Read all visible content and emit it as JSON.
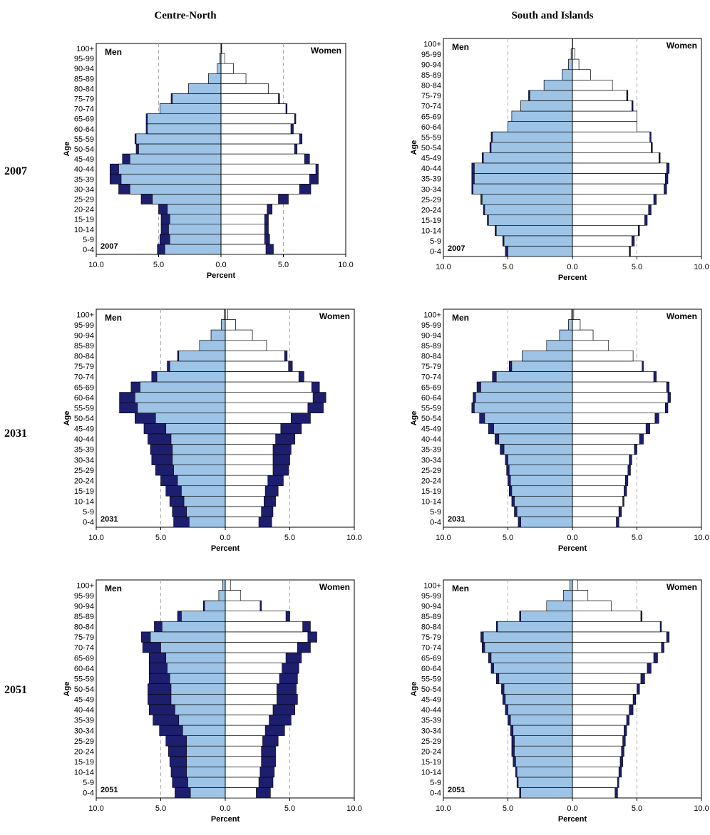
{
  "columns": [
    "Centre-North",
    "South and Islands"
  ],
  "rows": [
    "2007",
    "2031",
    "2051"
  ],
  "colors": {
    "total_fill": "#1e1e6e",
    "italian_fill": "#9dc3e6",
    "women_fill": "#ffffff",
    "gridline": "#aaaaaa"
  },
  "chart_data": [
    {
      "type": "bar",
      "region": "Centre-North",
      "year": "2007",
      "xlabel": "Percent",
      "ylabel": "Age",
      "men_label": "Men",
      "women_label": "Women",
      "xticks": [
        "10.0",
        "5.0",
        "0.0",
        "5.0",
        "10.0"
      ],
      "xlim": [
        -10,
        10
      ],
      "categories": [
        "0-4",
        "5-9",
        "10-14",
        "15-19",
        "20-24",
        "25-29",
        "30-34",
        "35-39",
        "40-44",
        "45-49",
        "50-54",
        "55-59",
        "60-64",
        "65-69",
        "70-74",
        "75-79",
        "80-84",
        "85-89",
        "90-94",
        "95-99",
        "100+"
      ],
      "series": [
        {
          "values": [
            -4.5,
            -4.1,
            -4.2,
            -4.1,
            -4.3,
            -5.5,
            -7.3,
            -8.0,
            -8.2,
            -7.3,
            -6.6,
            -6.8,
            -5.9,
            -5.9,
            -4.9,
            -3.9,
            -2.6,
            -1.0,
            -0.3,
            -0.1,
            0
          ]
        },
        {
          "values": [
            -5.1,
            -4.9,
            -4.8,
            -4.8,
            -5.0,
            -6.4,
            -8.2,
            -8.9,
            -8.9,
            -7.9,
            -6.8,
            -6.9,
            -6.0,
            -6.0,
            -4.9,
            -4.0,
            -2.6,
            -1.0,
            -0.3,
            -0.1,
            0
          ]
        },
        {
          "values": [
            3.6,
            3.5,
            3.5,
            3.5,
            3.7,
            4.6,
            6.3,
            7.1,
            7.6,
            6.7,
            5.9,
            6.3,
            5.6,
            5.9,
            5.2,
            4.6,
            3.8,
            2.0,
            1.0,
            0.3,
            0.05
          ]
        },
        {
          "values": [
            4.2,
            3.9,
            3.8,
            3.8,
            4.1,
            5.4,
            7.2,
            7.8,
            7.8,
            7.1,
            6.1,
            6.5,
            5.8,
            6.0,
            5.3,
            4.7,
            3.8,
            2.0,
            1.0,
            0.3,
            0.05
          ]
        }
      ]
    },
    {
      "type": "bar",
      "region": "South and Islands",
      "year": "2007",
      "xlabel": "Percent",
      "ylabel": "Age",
      "men_label": "Men",
      "women_label": "Women",
      "xticks": [
        "10.0",
        "5.0",
        "0.0",
        "5.0",
        "10.0"
      ],
      "xlim": [
        -10,
        10
      ],
      "categories": [
        "0-4",
        "5-9",
        "10-14",
        "15-19",
        "20-24",
        "25-29",
        "30-34",
        "35-39",
        "40-44",
        "45-49",
        "50-54",
        "55-59",
        "60-64",
        "65-69",
        "70-74",
        "75-79",
        "80-84",
        "85-89",
        "90-94",
        "95-99",
        "100+"
      ],
      "series": [
        {
          "values": [
            -5.0,
            -5.3,
            -5.9,
            -6.5,
            -6.8,
            -7.0,
            -7.7,
            -7.6,
            -7.6,
            -6.9,
            -6.3,
            -6.2,
            -5.0,
            -4.7,
            -4.0,
            -3.3,
            -2.2,
            -0.8,
            -0.3,
            -0.1,
            0
          ]
        },
        {
          "values": [
            -5.2,
            -5.4,
            -6.0,
            -6.6,
            -6.9,
            -7.1,
            -7.8,
            -7.8,
            -7.8,
            -7.0,
            -6.4,
            -6.3,
            -5.0,
            -4.7,
            -4.0,
            -3.4,
            -2.2,
            -0.8,
            -0.3,
            -0.1,
            0
          ]
        },
        {
          "values": [
            4.4,
            4.6,
            5.1,
            5.6,
            5.9,
            6.3,
            7.1,
            7.2,
            7.3,
            6.7,
            6.1,
            6.0,
            5.0,
            5.0,
            4.6,
            4.2,
            3.1,
            1.4,
            0.5,
            0.2,
            0.02
          ]
        },
        {
          "values": [
            4.5,
            4.8,
            5.2,
            5.8,
            6.1,
            6.5,
            7.3,
            7.4,
            7.5,
            6.8,
            6.2,
            6.1,
            5.0,
            5.0,
            4.7,
            4.3,
            3.1,
            1.4,
            0.5,
            0.2,
            0.02
          ]
        }
      ]
    },
    {
      "type": "bar",
      "region": "Centre-North",
      "year": "2031",
      "xlabel": "Percent",
      "ylabel": "Age",
      "men_label": "Men",
      "women_label": "Women",
      "xticks": [
        "10.0",
        "5.0",
        "0.0",
        "5.0",
        "10.0"
      ],
      "xlim": [
        -10,
        10
      ],
      "categories": [
        "0-4",
        "5-9",
        "10-14",
        "15-19",
        "20-24",
        "25-29",
        "30-34",
        "35-39",
        "40-44",
        "45-49",
        "50-54",
        "55-59",
        "60-64",
        "65-69",
        "70-74",
        "75-79",
        "80-84",
        "85-89",
        "90-94",
        "95-99",
        "100+"
      ],
      "series": [
        {
          "values": [
            -2.8,
            -3.0,
            -3.2,
            -3.4,
            -3.7,
            -4.0,
            -4.1,
            -4.1,
            -4.2,
            -4.6,
            -5.4,
            -6.8,
            -7.0,
            -6.6,
            -5.3,
            -4.3,
            -3.6,
            -2.0,
            -1.1,
            -0.3,
            -0.05
          ]
        },
        {
          "values": [
            -4.0,
            -4.1,
            -4.3,
            -4.6,
            -5.0,
            -5.4,
            -5.7,
            -5.8,
            -6.0,
            -6.3,
            -7.0,
            -8.2,
            -8.2,
            -7.3,
            -5.7,
            -4.5,
            -3.7,
            -2.0,
            -1.1,
            -0.3,
            -0.05
          ]
        },
        {
          "values": [
            2.6,
            2.8,
            3.0,
            3.1,
            3.3,
            3.7,
            3.7,
            3.7,
            3.9,
            4.3,
            5.1,
            6.4,
            6.8,
            6.7,
            5.7,
            4.9,
            4.6,
            3.2,
            2.1,
            0.8,
            0.2
          ]
        },
        {
          "values": [
            3.6,
            3.7,
            3.9,
            4.1,
            4.5,
            4.9,
            5.0,
            5.1,
            5.4,
            5.9,
            6.6,
            7.6,
            7.8,
            7.3,
            6.1,
            5.2,
            4.8,
            3.2,
            2.1,
            0.8,
            0.2
          ]
        }
      ]
    },
    {
      "type": "bar",
      "region": "South and Islands",
      "year": "2031",
      "xlabel": "Percent",
      "ylabel": "Age",
      "men_label": "Men",
      "women_label": "Women",
      "xticks": [
        "10.0",
        "5.0",
        "0.0",
        "5.0",
        "10.0"
      ],
      "xlim": [
        -10,
        10
      ],
      "categories": [
        "0-4",
        "5-9",
        "10-14",
        "15-19",
        "20-24",
        "25-29",
        "30-34",
        "35-39",
        "40-44",
        "45-49",
        "50-54",
        "55-59",
        "60-64",
        "65-69",
        "70-74",
        "75-79",
        "80-84",
        "85-89",
        "90-94",
        "95-99",
        "100+"
      ],
      "series": [
        {
          "values": [
            -4.0,
            -4.3,
            -4.5,
            -4.7,
            -4.8,
            -4.9,
            -5.0,
            -5.3,
            -5.7,
            -6.1,
            -6.8,
            -7.6,
            -7.5,
            -7.1,
            -5.9,
            -4.7,
            -3.9,
            -2.0,
            -1.0,
            -0.3,
            -0.05
          ]
        },
        {
          "values": [
            -4.2,
            -4.5,
            -4.7,
            -4.9,
            -5.0,
            -5.1,
            -5.2,
            -5.6,
            -6.0,
            -6.5,
            -7.2,
            -7.8,
            -7.7,
            -7.4,
            -6.2,
            -4.9,
            -3.9,
            -2.0,
            -1.0,
            -0.3,
            -0.05
          ]
        },
        {
          "values": [
            3.4,
            3.6,
            3.9,
            4.0,
            4.1,
            4.3,
            4.4,
            4.8,
            5.2,
            5.7,
            6.4,
            7.2,
            7.4,
            7.3,
            6.3,
            5.4,
            4.7,
            2.8,
            1.6,
            0.6,
            0.1
          ]
        },
        {
          "values": [
            3.6,
            3.8,
            4.0,
            4.2,
            4.3,
            4.5,
            4.6,
            5.0,
            5.5,
            6.0,
            6.7,
            7.4,
            7.6,
            7.5,
            6.5,
            5.5,
            4.7,
            2.8,
            1.6,
            0.6,
            0.1
          ]
        }
      ]
    },
    {
      "type": "bar",
      "region": "Centre-North",
      "year": "2051",
      "xlabel": "Percent",
      "ylabel": "Age",
      "men_label": "Men",
      "women_label": "Women",
      "xticks": [
        "10.0",
        "5.0",
        "0.0",
        "5.0",
        "10.0"
      ],
      "xlim": [
        -10,
        10
      ],
      "categories": [
        "0-4",
        "5-9",
        "10-14",
        "15-19",
        "20-24",
        "25-29",
        "30-34",
        "35-39",
        "40-44",
        "45-49",
        "50-54",
        "55-59",
        "60-64",
        "65-69",
        "70-74",
        "75-79",
        "80-84",
        "85-89",
        "90-94",
        "95-99",
        "100+"
      ],
      "series": [
        {
          "values": [
            -2.7,
            -2.9,
            -3.0,
            -3.0,
            -3.0,
            -3.0,
            -3.3,
            -3.6,
            -3.9,
            -4.2,
            -4.2,
            -4.3,
            -4.5,
            -4.6,
            -5.0,
            -5.8,
            -4.9,
            -3.4,
            -1.6,
            -0.5,
            -0.2
          ]
        },
        {
          "values": [
            -3.9,
            -4.1,
            -4.2,
            -4.3,
            -4.4,
            -4.6,
            -5.1,
            -5.6,
            -5.9,
            -6.0,
            -6.0,
            -5.9,
            -5.9,
            -5.9,
            -6.4,
            -6.5,
            -5.5,
            -3.7,
            -1.7,
            -0.5,
            -0.2
          ]
        },
        {
          "values": [
            2.4,
            2.6,
            2.7,
            2.8,
            2.8,
            2.9,
            3.1,
            3.4,
            3.7,
            4.0,
            4.0,
            4.2,
            4.4,
            4.7,
            5.6,
            6.4,
            6.0,
            4.7,
            2.7,
            1.2,
            0.4
          ]
        },
        {
          "values": [
            3.5,
            3.7,
            3.8,
            3.9,
            3.9,
            4.1,
            4.6,
            5.1,
            5.4,
            5.6,
            5.5,
            5.6,
            5.7,
            5.9,
            6.6,
            7.1,
            6.6,
            5.0,
            2.8,
            1.2,
            0.4
          ]
        }
      ]
    },
    {
      "type": "bar",
      "region": "South and Islands",
      "year": "2051",
      "xlabel": "Percent",
      "ylabel": "Age",
      "men_label": "Men",
      "women_label": "Women",
      "xticks": [
        "10.0",
        "5.0",
        "0.0",
        "5.0",
        "10.0"
      ],
      "xlim": [
        -10,
        10
      ],
      "categories": [
        "0-4",
        "5-9",
        "10-14",
        "15-19",
        "20-24",
        "25-29",
        "30-34",
        "35-39",
        "40-44",
        "45-49",
        "50-54",
        "55-59",
        "60-64",
        "65-69",
        "70-74",
        "75-79",
        "80-84",
        "85-89",
        "90-94",
        "95-99",
        "100+"
      ],
      "series": [
        {
          "values": [
            -4.0,
            -4.2,
            -4.3,
            -4.4,
            -4.5,
            -4.5,
            -4.6,
            -4.8,
            -5.0,
            -5.2,
            -5.3,
            -5.7,
            -6.1,
            -6.3,
            -6.8,
            -6.9,
            -5.8,
            -4.0,
            -2.0,
            -0.7,
            -0.2
          ]
        },
        {
          "values": [
            -4.1,
            -4.3,
            -4.4,
            -4.6,
            -4.7,
            -4.7,
            -4.8,
            -5.0,
            -5.2,
            -5.4,
            -5.5,
            -5.9,
            -6.3,
            -6.5,
            -7.0,
            -7.1,
            -5.9,
            -4.1,
            -2.0,
            -0.7,
            -0.2
          ]
        },
        {
          "values": [
            3.3,
            3.5,
            3.6,
            3.7,
            3.8,
            3.9,
            4.0,
            4.2,
            4.4,
            4.7,
            5.0,
            5.3,
            5.8,
            6.3,
            6.9,
            7.3,
            6.8,
            5.3,
            3.0,
            1.2,
            0.4
          ]
        },
        {
          "values": [
            3.5,
            3.6,
            3.8,
            3.9,
            4.0,
            4.1,
            4.2,
            4.4,
            4.7,
            4.9,
            5.2,
            5.6,
            6.1,
            6.6,
            7.1,
            7.5,
            6.9,
            5.4,
            3.0,
            1.2,
            0.4
          ]
        }
      ]
    }
  ]
}
